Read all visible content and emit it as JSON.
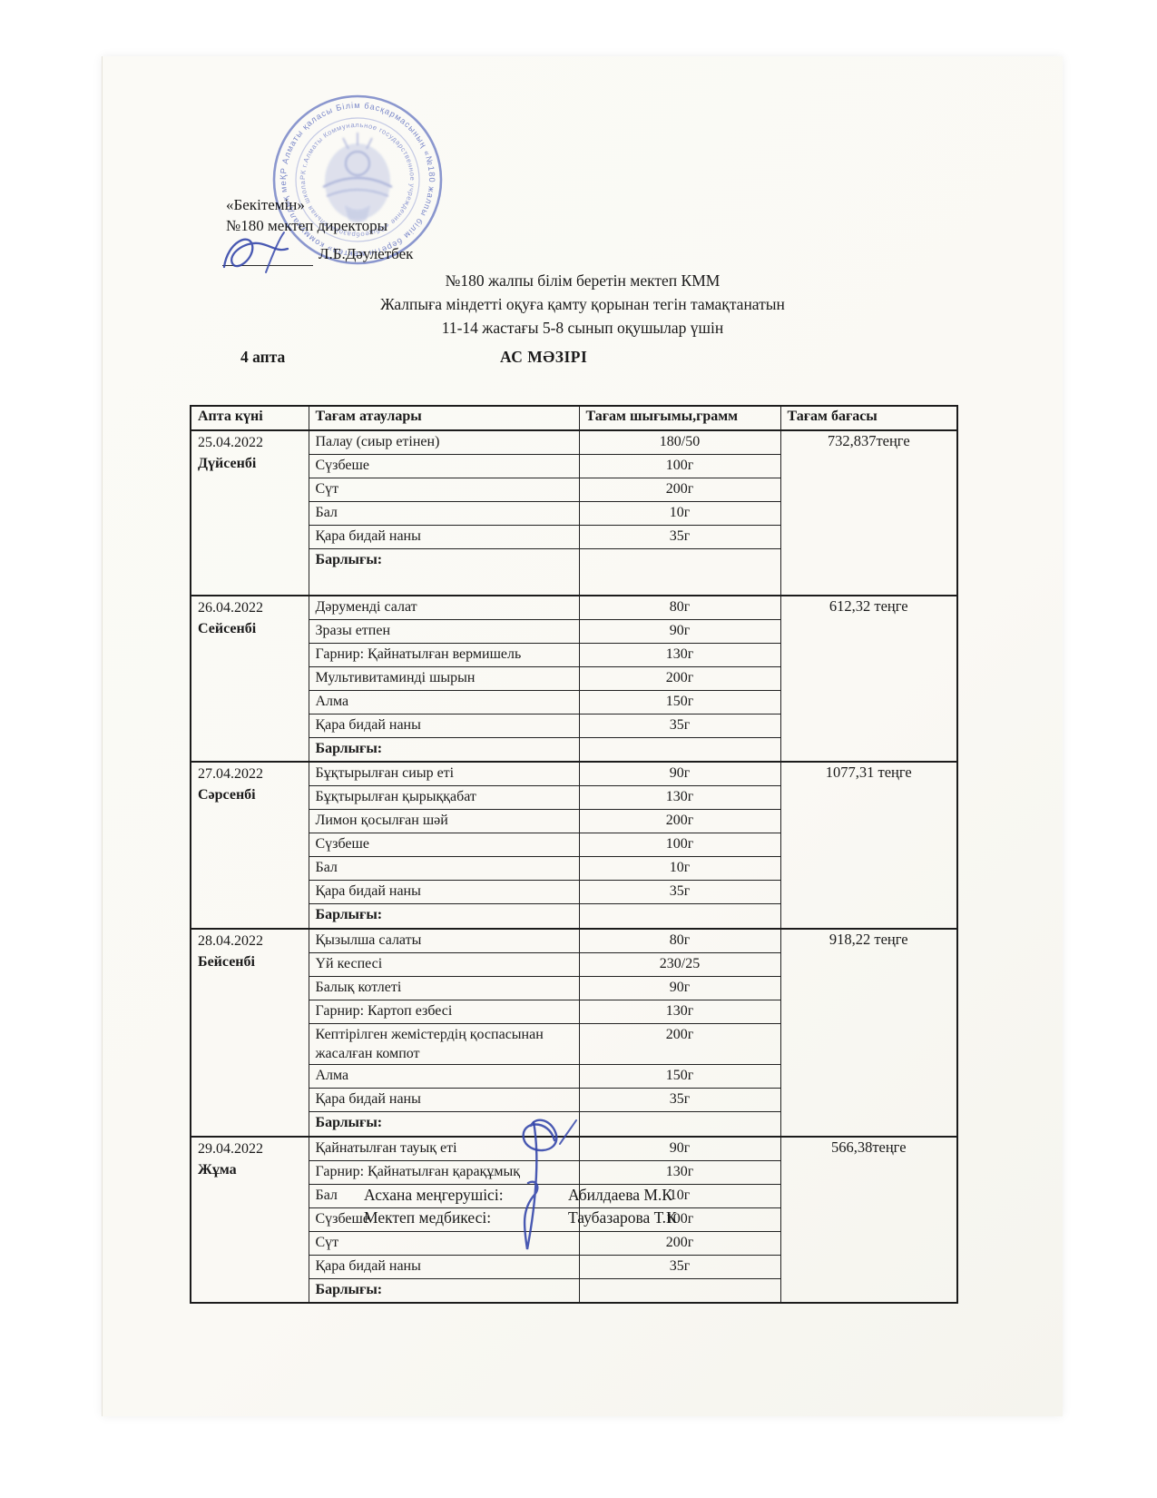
{
  "colors": {
    "stamp_blue": "#5a6cc5",
    "signature_blue": "#3547ab",
    "ink": "#1a1a1a",
    "paper": "#fbfaf6"
  },
  "approval": {
    "line1": "«Бекітемін»",
    "line2": "№180 мектеп директоры",
    "director_name": "Л.Б.Дәулетбек"
  },
  "stamp": {
    "ring_outer": "ҚР Алматы қаласы Білім басқармасының «№180 жалпы білім беретін мектеп» коммуналдық мемлекеттік мекемесі",
    "ring_inner": "РК г.Алматы Коммунальное государственное учреждение «Общеобразовательная школа № 180» Управления образования"
  },
  "title": {
    "line1": "№180 жалпы білім беретін мектеп КММ",
    "line2": "Жалпыға міндетті оқуға қамту қорынан тегін тамақтанатын",
    "line3": "11-14 жастағы 5-8 сынып оқушылар үшін"
  },
  "week_label": "4 апта",
  "menu_title": "АС МӘЗІРІ",
  "table": {
    "headers": [
      "Апта күні",
      "Тағам атаулары",
      "Тағам шығымы,грамм",
      "Тағам бағасы"
    ],
    "total_label": "Барлығы:",
    "days": [
      {
        "date": "25.04.2022",
        "weekday": "Дүйсенбі",
        "items": [
          {
            "name": "Палау (сиыр етінен)",
            "amount": "180/50"
          },
          {
            "name": "Сүзбеше",
            "amount": "100г"
          },
          {
            "name": "Сүт",
            "amount": "200г"
          },
          {
            "name": "Бал",
            "amount": "10г"
          },
          {
            "name": "Қара бидай наны",
            "amount": "35г"
          }
        ],
        "price": "732,837теңге"
      },
      {
        "date": "26.04.2022",
        "weekday": "Сейсенбі",
        "items": [
          {
            "name": "Дәруменді салат",
            "amount": "80г"
          },
          {
            "name": "Зразы етпен",
            "amount": "90г"
          },
          {
            "name": "Гарнир: Қайнатылған вермишель",
            "amount": "130г"
          },
          {
            "name": "Мультивитаминді шырын",
            "amount": "200г"
          },
          {
            "name": "Алма",
            "amount": "150г"
          },
          {
            "name": "Қара бидай наны",
            "amount": "35г"
          }
        ],
        "price": "612,32 теңге"
      },
      {
        "date": "27.04.2022",
        "weekday": "Сәрсенбі",
        "items": [
          {
            "name": "Бұқтырылған сиыр еті",
            "amount": "90г"
          },
          {
            "name": "Бұқтырылған қырыққабат",
            "amount": "130г"
          },
          {
            "name": "Лимон қосылған шәй",
            "amount": "200г"
          },
          {
            "name": "Сүзбеше",
            "amount": "100г"
          },
          {
            "name": "Бал",
            "amount": "10г"
          },
          {
            "name": "Қара бидай наны",
            "amount": "35г"
          }
        ],
        "price": "1077,31 теңге"
      },
      {
        "date": "28.04.2022",
        "weekday": "Бейсенбі",
        "items": [
          {
            "name": "Қызылша салаты",
            "amount": "80г"
          },
          {
            "name": "Үй кеспесі",
            "amount": "230/25"
          },
          {
            "name": "Балық котлеті",
            "amount": "90г"
          },
          {
            "name": "Гарнир: Картоп езбесі",
            "amount": "130г"
          },
          {
            "name": "Кептірілген жемістердің  қоспасынан жасалған компот",
            "amount": "200г"
          },
          {
            "name": "Алма",
            "amount": "150г"
          },
          {
            "name": "Қара бидай наны",
            "amount": "35г"
          }
        ],
        "price": "918,22 теңге"
      },
      {
        "date": "29.04.2022",
        "weekday": "Жұма",
        "items": [
          {
            "name": "Қайнатылған тауық еті",
            "amount": "90г"
          },
          {
            "name": "Гарнир: Қайнатылған қарақұмық",
            "amount": "130г"
          },
          {
            "name": "Бал",
            "amount": "10г"
          },
          {
            "name": "Сүзбеше",
            "amount": "100г"
          },
          {
            "name": "Сүт",
            "amount": "200г"
          },
          {
            "name": "Қара бидай наны",
            "amount": "35г"
          }
        ],
        "price": "566,38теңге"
      }
    ]
  },
  "footer": {
    "role1": "Асхана меңгерушісі:",
    "name1": "Абилдаева М.К",
    "role2": "Мектеп медбикесі:",
    "name2": "Таубазарова Т.К"
  }
}
